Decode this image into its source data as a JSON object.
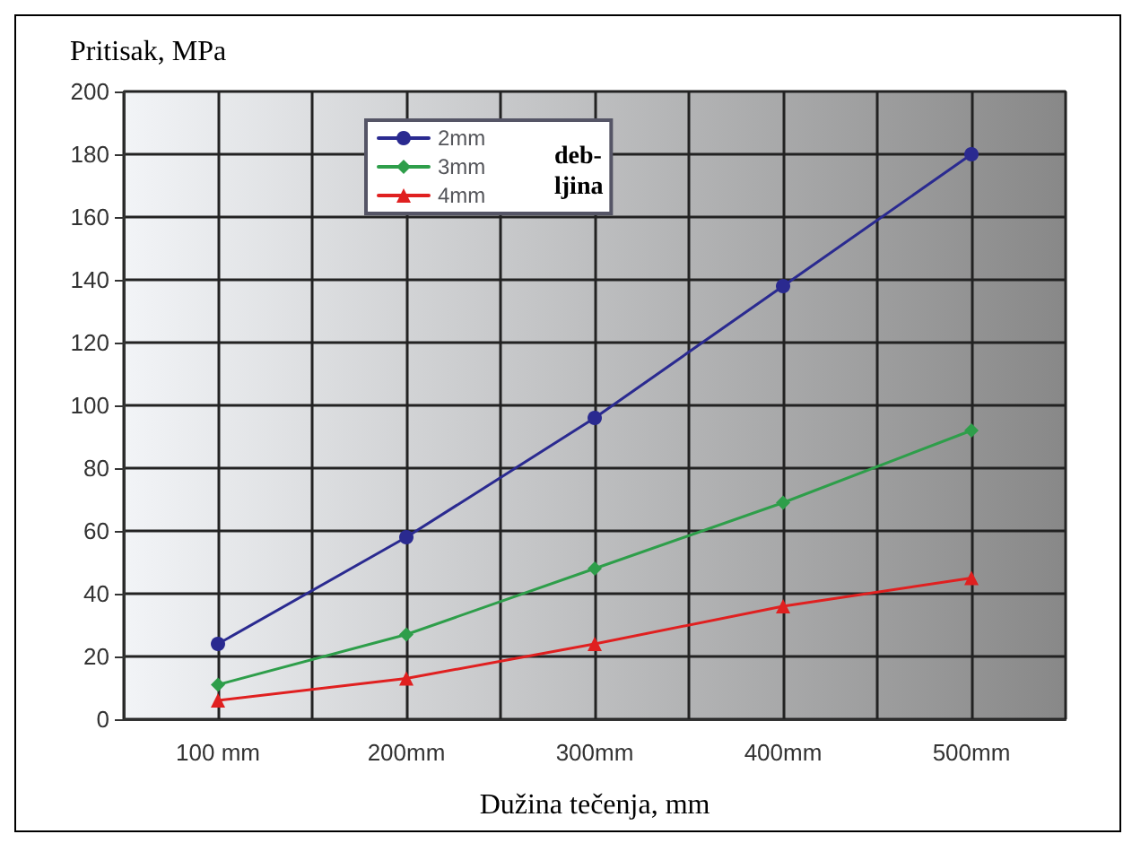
{
  "chart_data": {
    "type": "line",
    "ylabel": "Pritisak, MPa",
    "xlabel": "Dužina tečenja, mm",
    "legend_title": "deb-\nljina",
    "categories": [
      "100 mm",
      "200mm",
      "300mm",
      "400mm",
      "500mm"
    ],
    "series": [
      {
        "name": "2mm",
        "color": "#2a2a90",
        "marker": "circle",
        "values": [
          24,
          58,
          96,
          138,
          180
        ]
      },
      {
        "name": "3mm",
        "color": "#2e9e4a",
        "marker": "diamond",
        "values": [
          11,
          27,
          48,
          69,
          92
        ]
      },
      {
        "name": "4mm",
        "color": "#e02020",
        "marker": "triangle",
        "values": [
          6,
          13,
          24,
          36,
          45
        ]
      }
    ],
    "ylim": [
      0,
      200
    ],
    "yticks": [
      0,
      20,
      40,
      60,
      80,
      100,
      120,
      140,
      160,
      180,
      200
    ],
    "grid": true,
    "legend": "top left",
    "line_style": "solid"
  }
}
